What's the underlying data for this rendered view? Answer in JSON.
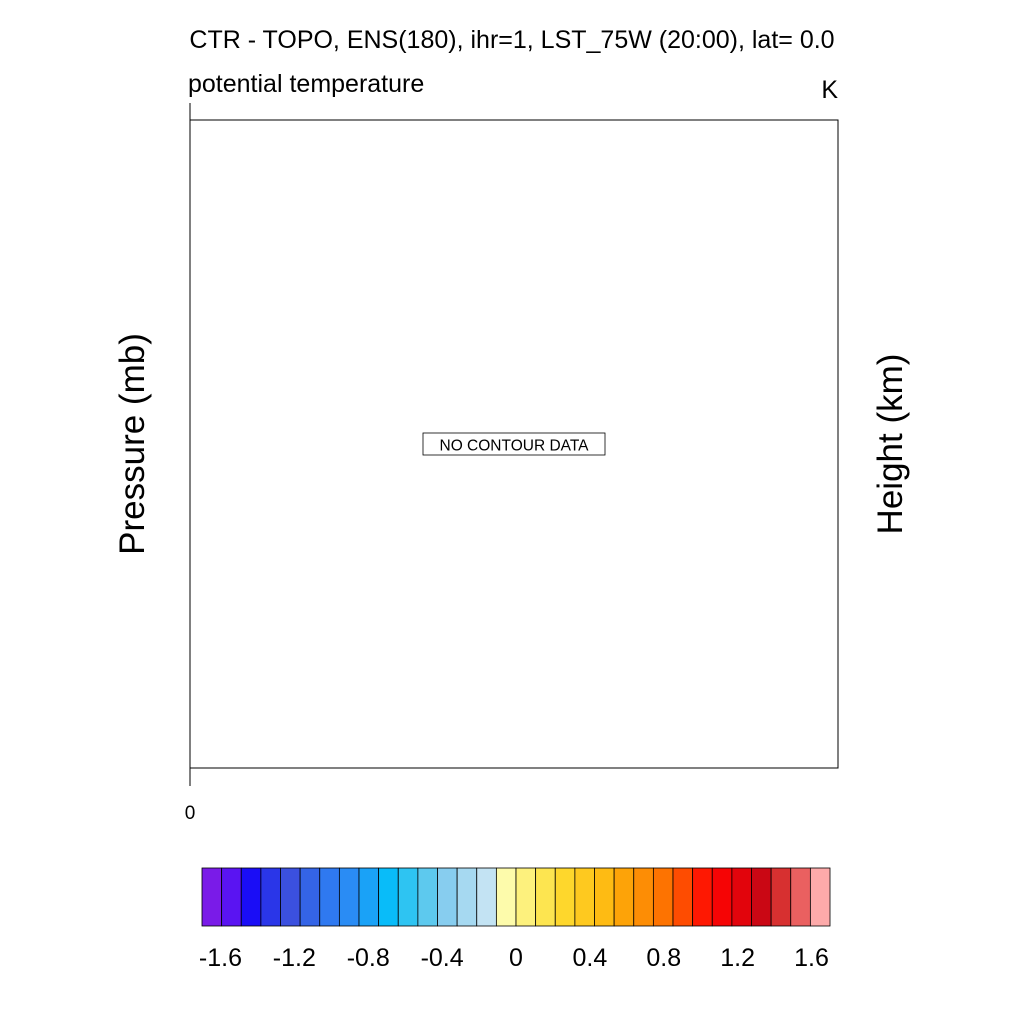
{
  "chart_data": {
    "type": "heatmap",
    "title": "CTR - TOPO, ENS(180), ihr=1, LST_75W (20:00), lat=  0.0",
    "left_subtitle": "potential temperature",
    "right_subtitle": "K",
    "ylabel_left": "Pressure (mb)",
    "ylabel_right": "Height (km)",
    "x_tick_labels": [
      "0"
    ],
    "no_data_message": "NO CONTOUR DATA",
    "values": [],
    "colorbar": {
      "min": -1.7,
      "max": 1.7,
      "step": 0.1,
      "tick_values": [
        -1.6,
        -1.2,
        -0.8,
        -0.4,
        0,
        0.4,
        0.8,
        1.2,
        1.6
      ],
      "tick_labels": [
        "-1.6",
        "-1.2",
        "-0.8",
        "-0.4",
        "0",
        "0.4",
        "0.8",
        "1.2",
        "1.6"
      ],
      "colors": [
        "#7a1be8",
        "#5a14f2",
        "#1a0df6",
        "#2a36e8",
        "#3b50df",
        "#3464e6",
        "#2f79f0",
        "#2a8cf4",
        "#1aa2f7",
        "#09bcf9",
        "#2ec4f2",
        "#5dc9ee",
        "#87cdef",
        "#a6d9f1",
        "#c3e3f3",
        "#fdfbab",
        "#fdf17d",
        "#fde550",
        "#fed72c",
        "#fec91f",
        "#febb13",
        "#fda308",
        "#fd8d05",
        "#fd7301",
        "#fe4c01",
        "#fe1802",
        "#f60405",
        "#e2040c",
        "#ca0714",
        "#d73030",
        "#ea6060",
        "#fdaaaa"
      ]
    }
  }
}
